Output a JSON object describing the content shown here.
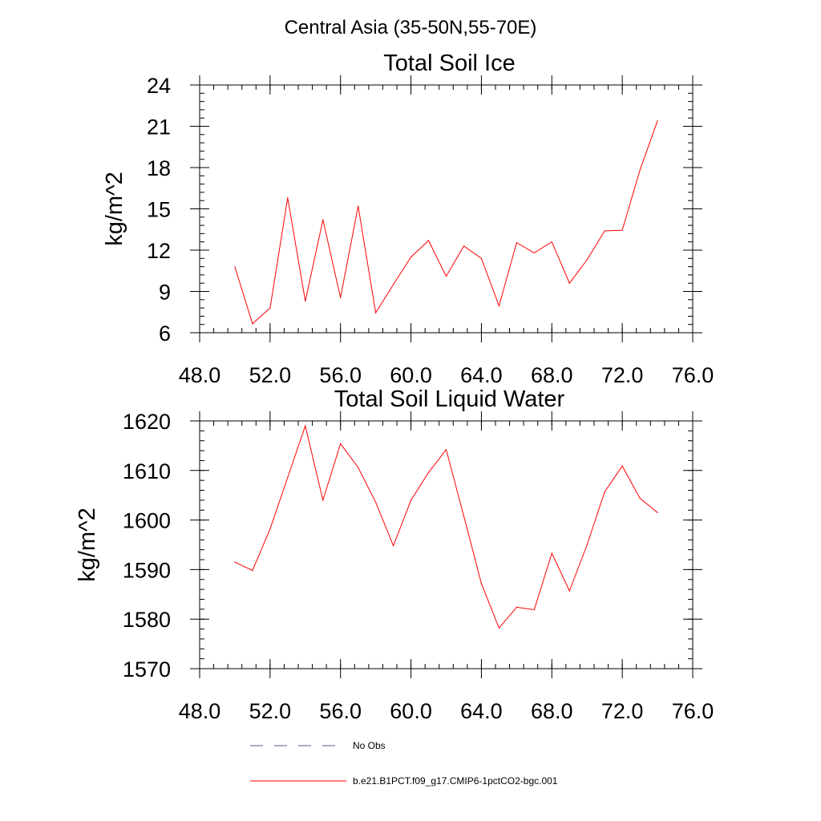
{
  "page": {
    "suptitle": "Central Asia (35-50N,55-70E)"
  },
  "colors": {
    "model_line": "#ff0000",
    "obs_line": "#4f5c82",
    "axis": "#000000",
    "background": "#ffffff"
  },
  "legend": {
    "placement": "bottom",
    "items": [
      {
        "label": "No Obs",
        "style": "dashed"
      },
      {
        "label": "b.e21.B1PCT.f09_g17.CMIP6-1pctCO2-bgc.001",
        "style": "solid"
      }
    ]
  },
  "chart_data": [
    {
      "type": "line",
      "title": "Total Soil Ice",
      "xlabel": "",
      "ylabel": "kg/m^2",
      "xlim": [
        48,
        76
      ],
      "ylim": [
        6,
        24
      ],
      "xticks": [
        48,
        52,
        56,
        60,
        64,
        68,
        72,
        76
      ],
      "xtick_labels": [
        "48.0",
        "52.0",
        "56.0",
        "60.0",
        "64.0",
        "68.0",
        "72.0",
        "76.0"
      ],
      "yticks": [
        6,
        9,
        12,
        15,
        18,
        21,
        24
      ],
      "ytick_labels": [
        "6",
        "9",
        "12",
        "15",
        "18",
        "21",
        "24"
      ],
      "grid": false,
      "series": [
        {
          "x": [
            50,
            51,
            52,
            53,
            54,
            55,
            56,
            57,
            58,
            59,
            60,
            61,
            62,
            63,
            64,
            65,
            66,
            67,
            68,
            69,
            70,
            71,
            72,
            73,
            74
          ],
          "values": [
            10.8,
            6.65,
            7.8,
            15.8,
            8.3,
            14.2,
            8.55,
            15.2,
            7.45,
            9.5,
            11.5,
            12.7,
            10.1,
            12.3,
            11.4,
            7.95,
            12.55,
            11.8,
            12.6,
            9.6,
            11.3,
            13.4,
            13.45,
            17.8,
            21.4
          ]
        }
      ]
    },
    {
      "type": "line",
      "title": "Total Soil Liquid Water",
      "xlabel": "",
      "ylabel": "kg/m^2",
      "xlim": [
        48,
        76
      ],
      "ylim": [
        1570,
        1620
      ],
      "xticks": [
        48,
        52,
        56,
        60,
        64,
        68,
        72,
        76
      ],
      "xtick_labels": [
        "48.0",
        "52.0",
        "56.0",
        "60.0",
        "64.0",
        "68.0",
        "72.0",
        "76.0"
      ],
      "yticks": [
        1570,
        1580,
        1590,
        1600,
        1610,
        1620
      ],
      "ytick_labels": [
        "1570",
        "1580",
        "1590",
        "1600",
        "1610",
        "1620"
      ],
      "grid": false,
      "series": [
        {
          "x": [
            50,
            51,
            52,
            53,
            54,
            55,
            56,
            57,
            58,
            59,
            60,
            61,
            62,
            63,
            64,
            65,
            66,
            67,
            68,
            69,
            70,
            71,
            72,
            73,
            74
          ],
          "values": [
            1591.5,
            1589.8,
            1598.2,
            1608.6,
            1619.0,
            1604.0,
            1615.4,
            1610.6,
            1603.6,
            1594.8,
            1604.0,
            1609.6,
            1614.2,
            1600.8,
            1587.2,
            1578.2,
            1582.4,
            1581.9,
            1593.3,
            1585.7,
            1595.0,
            1605.7,
            1610.9,
            1604.4,
            1601.5
          ]
        }
      ]
    }
  ]
}
